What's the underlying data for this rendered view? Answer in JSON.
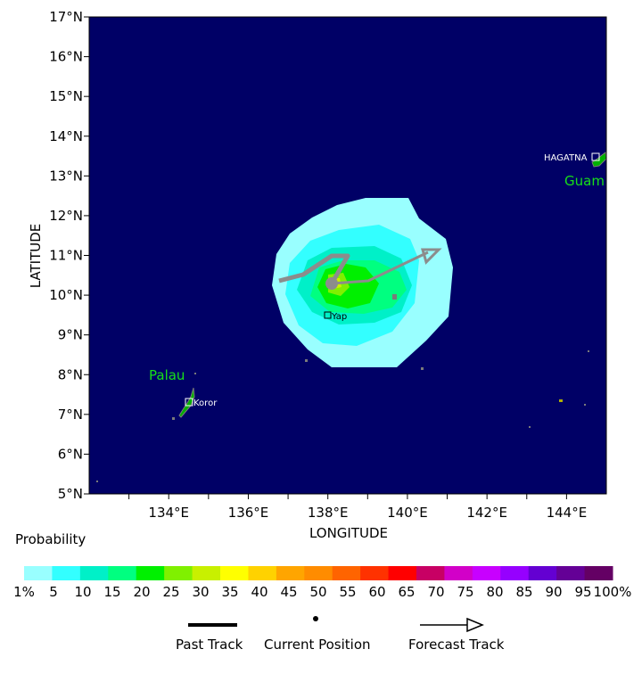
{
  "map": {
    "lat_labels": [
      "17°N",
      "16°N",
      "15°N",
      "14°N",
      "13°N",
      "12°N",
      "11°N",
      "10°N",
      "9°N",
      "8°N",
      "7°N",
      "6°N",
      "5°N"
    ],
    "lon_labels": [
      "134°E",
      "136°E",
      "138°E",
      "140°E",
      "142°E",
      "144°E"
    ],
    "x_axis_title": "LONGITUDE",
    "y_axis_title": "LATITUDE",
    "ocean_color": "#000066",
    "places": {
      "hagatna": "HAGATNA",
      "guam": "Guam",
      "yap": "Yap",
      "palau": "Palau",
      "koror": "Koror"
    }
  },
  "legend": {
    "title": "Probability",
    "labels": [
      "1%",
      "5",
      "10",
      "15",
      "20",
      "25",
      "30",
      "35",
      "40",
      "45",
      "50",
      "55",
      "60",
      "65",
      "70",
      "75",
      "80",
      "85",
      "90",
      "95",
      "100%"
    ],
    "colors": [
      "#99ffff",
      "#33ffff",
      "#00f0c8",
      "#00ff80",
      "#00f000",
      "#80f000",
      "#c8f000",
      "#ffff00",
      "#ffd200",
      "#ffa500",
      "#ff8c00",
      "#ff6400",
      "#ff3200",
      "#ff0000",
      "#c80064",
      "#d200c8",
      "#c800ff",
      "#9600ff",
      "#6400d2",
      "#640096",
      "#640064"
    ]
  },
  "key": {
    "past_track": "Past Track",
    "current_position": "Current Position",
    "forecast_track": "Forecast Track"
  }
}
